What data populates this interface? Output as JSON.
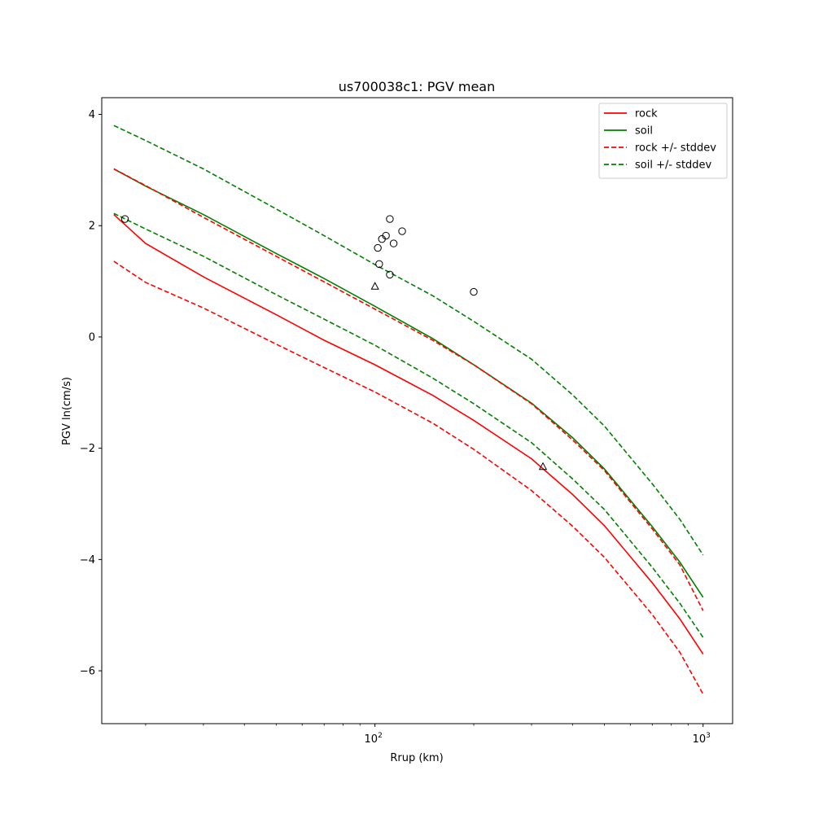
{
  "chart_data": {
    "type": "line",
    "title": "us700038c1: PGV mean",
    "xlabel": "Rrup (km)",
    "ylabel": "PGV ln(cm/s)",
    "xscale": "log",
    "xlim": [
      14.7,
      1230
    ],
    "ylim": [
      -6.95,
      4.3
    ],
    "xticks": [
      {
        "value": 100,
        "base": "10",
        "exp": "2"
      },
      {
        "value": 1000,
        "base": "10",
        "exp": "3"
      }
    ],
    "yticks": [
      4,
      2,
      0,
      -2,
      -4,
      -6
    ],
    "grid": false,
    "legend_position": "top-right",
    "series": [
      {
        "name": "rock",
        "color": "#ff0000",
        "dash": "solid",
        "x": [
          16,
          20,
          30,
          50,
          70,
          100,
          150,
          200,
          300,
          400,
          500,
          700,
          850,
          1000
        ],
        "y": [
          2.2,
          1.68,
          1.08,
          0.4,
          -0.06,
          -0.5,
          -1.05,
          -1.5,
          -2.19,
          -2.83,
          -3.39,
          -4.42,
          -5.07,
          -5.7
        ]
      },
      {
        "name": "soil",
        "color": "#008000",
        "dash": "solid",
        "x": [
          16,
          20,
          30,
          50,
          70,
          100,
          150,
          200,
          300,
          400,
          500,
          700,
          850,
          1000
        ],
        "y": [
          3.02,
          2.71,
          2.2,
          1.5,
          1.05,
          0.55,
          -0.03,
          -0.5,
          -1.19,
          -1.81,
          -2.37,
          -3.41,
          -4.05,
          -4.68
        ]
      },
      {
        "name": "rock +/- stddev",
        "color": "#ff0000",
        "dash": "dashed",
        "x": [
          16,
          20,
          30,
          50,
          70,
          100,
          150,
          200,
          300,
          400,
          500,
          700,
          850,
          1000
        ],
        "y": [
          3.02,
          2.72,
          2.15,
          1.45,
          0.99,
          0.5,
          -0.06,
          -0.5,
          -1.2,
          -1.85,
          -2.4,
          -3.45,
          -4.1,
          -4.92
        ]
      },
      {
        "name": "",
        "color": "#ff0000",
        "dash": "dashed",
        "x": [
          16,
          20,
          30,
          50,
          70,
          100,
          150,
          200,
          300,
          400,
          500,
          700,
          850,
          1000
        ],
        "y": [
          1.36,
          0.98,
          0.52,
          -0.13,
          -0.55,
          -0.99,
          -1.55,
          -2.02,
          -2.76,
          -3.4,
          -3.96,
          -4.99,
          -5.67,
          -6.42
        ]
      },
      {
        "name": "soil +/- stddev",
        "color": "#008000",
        "dash": "dashed",
        "x": [
          16,
          20,
          30,
          50,
          70,
          100,
          150,
          200,
          300,
          400,
          500,
          700,
          850,
          1000
        ],
        "y": [
          3.8,
          3.53,
          3.02,
          2.3,
          1.82,
          1.3,
          0.74,
          0.28,
          -0.4,
          -1.04,
          -1.6,
          -2.64,
          -3.28,
          -3.92
        ]
      },
      {
        "name": "",
        "color": "#008000",
        "dash": "dashed",
        "x": [
          16,
          20,
          30,
          50,
          70,
          100,
          150,
          200,
          300,
          400,
          500,
          700,
          850,
          1000
        ],
        "y": [
          2.22,
          1.94,
          1.45,
          0.76,
          0.32,
          -0.15,
          -0.74,
          -1.2,
          -1.9,
          -2.55,
          -3.1,
          -4.14,
          -4.79,
          -5.4
        ]
      }
    ],
    "observations": {
      "circles": [
        {
          "x": 17.3,
          "y": 2.12
        },
        {
          "x": 111,
          "y": 2.12
        },
        {
          "x": 121,
          "y": 1.9
        },
        {
          "x": 108,
          "y": 1.82
        },
        {
          "x": 105,
          "y": 1.76
        },
        {
          "x": 114,
          "y": 1.68
        },
        {
          "x": 102,
          "y": 1.6
        },
        {
          "x": 103,
          "y": 1.31
        },
        {
          "x": 111,
          "y": 1.12
        },
        {
          "x": 200,
          "y": 0.81
        }
      ],
      "triangles": [
        {
          "x": 100,
          "y": 0.91
        },
        {
          "x": 325,
          "y": -2.33
        }
      ]
    }
  }
}
